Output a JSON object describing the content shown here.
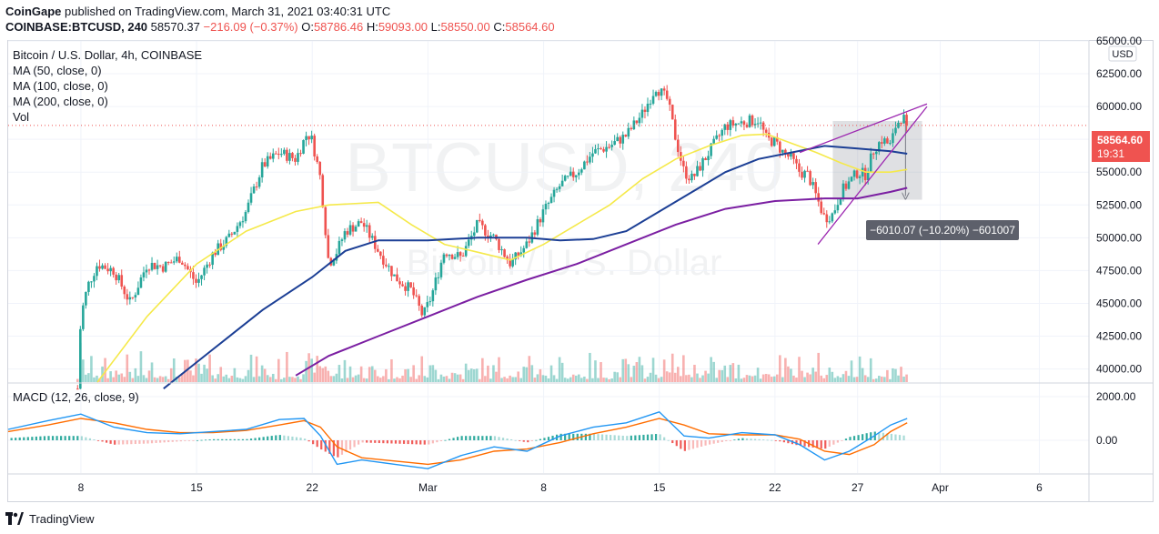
{
  "header": {
    "publisher": "CoinGape",
    "published_text": "published on TradingView.com, March 31, 2021 03:40:31 UTC",
    "symbol": "COINBASE:BTCUSD, 240",
    "last": "58570.37",
    "change": "−216.09 (−0.37%)",
    "o_label": "O:",
    "o": "58786.46",
    "h_label": "H:",
    "h": "59093.00",
    "l_label": "L:",
    "l": "58550.00",
    "c_label": "C:",
    "c": "58564.60"
  },
  "legend": {
    "title": "Bitcoin / U.S. Dollar, 4h, COINBASE",
    "ma50": "MA (50, close, 0)",
    "ma100": "MA (100, close, 0)",
    "ma200": "MA (200, close, 0)",
    "vol": "Vol"
  },
  "macd_label": "MACD (12, 26, close, 9)",
  "watermark": {
    "symbol": "BTCUSD, 240",
    "name": "Bitcoin / U.S. Dollar"
  },
  "currency_button": "USD",
  "price_badge": {
    "price": "58564.60",
    "countdown": "19:31"
  },
  "measure_label": "−6010.07 (−10.20%) −601007",
  "footer": {
    "brand": "TradingView"
  },
  "colors": {
    "up": "#26a69a",
    "down": "#ef5350",
    "ma50": "#f5e94a",
    "ma100": "#1c3f95",
    "ma200": "#7b1fa2",
    "macd": "#2196f3",
    "signal": "#ff6d00",
    "wedge": "#9c27b0",
    "badge": "#ef5350"
  },
  "chart_data": [
    {
      "type": "candlestick",
      "title": "Bitcoin / U.S. Dollar, 4h, COINBASE",
      "ylim": [
        39000,
        65000
      ],
      "y_ticks": [
        "65000.00",
        "62500.00",
        "60000.00",
        "57500.00",
        "55000.00",
        "52500.00",
        "50000.00",
        "47500.00",
        "45000.00",
        "42500.00",
        "40000.00"
      ],
      "x_ticks": [
        "8",
        "15",
        "22",
        "Mar",
        "8",
        "15",
        "22",
        "27",
        "Apr",
        "6"
      ],
      "x_tick_days": [
        8,
        15,
        22,
        29,
        36,
        43,
        50,
        55,
        60,
        66
      ],
      "x_range_days": [
        3.6,
        69
      ],
      "close_path": [
        [
          7.8,
          38500
        ],
        [
          8.0,
          44000
        ],
        [
          8.4,
          46300
        ],
        [
          9.0,
          48000
        ],
        [
          10.0,
          47500
        ],
        [
          11.0,
          45000
        ],
        [
          12.0,
          48000
        ],
        [
          13.0,
          47800
        ],
        [
          14.0,
          48500
        ],
        [
          15.0,
          46500
        ],
        [
          16.0,
          48800
        ],
        [
          17.0,
          50000
        ],
        [
          18.0,
          52000
        ],
        [
          19.0,
          55500
        ],
        [
          20.0,
          56500
        ],
        [
          21.0,
          56000
        ],
        [
          21.7,
          58000
        ],
        [
          22.0,
          57400
        ],
        [
          22.5,
          54500
        ],
        [
          23.0,
          48000
        ],
        [
          23.5,
          49000
        ],
        [
          24.0,
          50500
        ],
        [
          25.0,
          51200
        ],
        [
          26.0,
          49000
        ],
        [
          27.0,
          47000
        ],
        [
          28.0,
          46000
        ],
        [
          28.7,
          44000
        ],
        [
          29.2,
          45500
        ],
        [
          30.0,
          49000
        ],
        [
          31.0,
          48500
        ],
        [
          32.0,
          51000
        ],
        [
          33.0,
          50000
        ],
        [
          34.0,
          48000
        ],
        [
          35.0,
          49500
        ],
        [
          36.0,
          52000
        ],
        [
          37.0,
          54000
        ],
        [
          38.0,
          55000
        ],
        [
          39.0,
          56500
        ],
        [
          40.0,
          57000
        ],
        [
          41.0,
          57800
        ],
        [
          42.0,
          59500
        ],
        [
          42.8,
          61500
        ],
        [
          43.5,
          60500
        ],
        [
          44.0,
          57500
        ],
        [
          44.5,
          55000
        ],
        [
          45.0,
          54500
        ],
        [
          46.0,
          56500
        ],
        [
          47.0,
          58500
        ],
        [
          48.0,
          58800
        ],
        [
          49.0,
          59000
        ],
        [
          49.5,
          57500
        ],
        [
          50.0,
          57300
        ],
        [
          50.5,
          56500
        ],
        [
          51.0,
          56000
        ],
        [
          51.5,
          55000
        ],
        [
          52.0,
          54800
        ],
        [
          53.0,
          51500
        ],
        [
          53.5,
          51800
        ],
        [
          54.0,
          53500
        ],
        [
          55.0,
          55000
        ],
        [
          55.5,
          54800
        ],
        [
          56.0,
          56800
        ],
        [
          56.5,
          57500
        ],
        [
          57.0,
          57000
        ],
        [
          57.3,
          58500
        ],
        [
          57.7,
          59300
        ],
        [
          58.0,
          58560
        ]
      ],
      "series": [
        {
          "name": "MA (50, close, 0)",
          "points": [
            [
              9,
              39000
            ],
            [
              12,
              44000
            ],
            [
              15,
              48000
            ],
            [
              18,
              50500
            ],
            [
              21,
              52000
            ],
            [
              23,
              52500
            ],
            [
              26,
              52700
            ],
            [
              28,
              51000
            ],
            [
              30,
              49500
            ],
            [
              32,
              48900
            ],
            [
              34,
              48300
            ],
            [
              36,
              49500
            ],
            [
              38,
              51000
            ],
            [
              40,
              52500
            ],
            [
              42,
              54500
            ],
            [
              44,
              56000
            ],
            [
              46,
              57000
            ],
            [
              48,
              57800
            ],
            [
              49.5,
              57900
            ],
            [
              51,
              57200
            ],
            [
              52.5,
              56500
            ],
            [
              54,
              55700
            ],
            [
              55.5,
              55000
            ],
            [
              57,
              55000
            ],
            [
              58,
              55200
            ]
          ]
        },
        {
          "name": "MA (100, close, 0)",
          "points": [
            [
              13,
              38500
            ],
            [
              16,
              41500
            ],
            [
              19,
              44500
            ],
            [
              22,
              47000
            ],
            [
              24,
              49000
            ],
            [
              26,
              49800
            ],
            [
              29,
              49800
            ],
            [
              32,
              50000
            ],
            [
              35,
              50000
            ],
            [
              37,
              49800
            ],
            [
              39,
              49900
            ],
            [
              41,
              50500
            ],
            [
              43,
              52000
            ],
            [
              45,
              53500
            ],
            [
              47,
              55000
            ],
            [
              49,
              56000
            ],
            [
              51,
              56500
            ],
            [
              53,
              57000
            ],
            [
              55,
              56800
            ],
            [
              57,
              56600
            ],
            [
              58,
              56400
            ]
          ]
        },
        {
          "name": "MA (200, close, 0)",
          "points": [
            [
              21,
              39500
            ],
            [
              23,
              41000
            ],
            [
              26,
              42500
            ],
            [
              29,
              44000
            ],
            [
              32,
              45500
            ],
            [
              35,
              46800
            ],
            [
              38,
              48000
            ],
            [
              41,
              49500
            ],
            [
              44,
              51000
            ],
            [
              47,
              52200
            ],
            [
              50,
              52800
            ],
            [
              53,
              53000
            ],
            [
              55,
              53000
            ],
            [
              57,
              53500
            ],
            [
              58,
              53800
            ]
          ]
        }
      ]
    },
    {
      "type": "line",
      "title": "MACD (12, 26, close, 9)",
      "ylim": [
        -1500,
        2500
      ],
      "y_ticks": [
        "2000.00",
        "0.00"
      ],
      "series": [
        {
          "name": "MACD",
          "points": [
            [
              3.6,
              500
            ],
            [
              6,
              900
            ],
            [
              8,
              1200
            ],
            [
              10,
              600
            ],
            [
              12,
              350
            ],
            [
              14,
              300
            ],
            [
              16,
              400
            ],
            [
              18,
              500
            ],
            [
              20,
              950
            ],
            [
              21.5,
              1000
            ],
            [
              22.5,
              200
            ],
            [
              23.5,
              -1100
            ],
            [
              25,
              -900
            ],
            [
              27,
              -1100
            ],
            [
              29,
              -1300
            ],
            [
              31,
              -700
            ],
            [
              33,
              -300
            ],
            [
              35,
              -500
            ],
            [
              37,
              200
            ],
            [
              39,
              600
            ],
            [
              41,
              800
            ],
            [
              43,
              1300
            ],
            [
              44.5,
              200
            ],
            [
              46,
              100
            ],
            [
              48,
              350
            ],
            [
              50,
              250
            ],
            [
              51.5,
              -200
            ],
            [
              53,
              -900
            ],
            [
              54.5,
              -500
            ],
            [
              56,
              200
            ],
            [
              57,
              700
            ],
            [
              58,
              1000
            ]
          ]
        },
        {
          "name": "Signal",
          "points": [
            [
              3.6,
              400
            ],
            [
              6,
              700
            ],
            [
              8,
              1000
            ],
            [
              10,
              800
            ],
            [
              12,
              500
            ],
            [
              14,
              350
            ],
            [
              16,
              350
            ],
            [
              18,
              450
            ],
            [
              20,
              700
            ],
            [
              21.5,
              900
            ],
            [
              22.5,
              600
            ],
            [
              23.5,
              -300
            ],
            [
              25,
              -800
            ],
            [
              27,
              -950
            ],
            [
              29,
              -1100
            ],
            [
              31,
              -900
            ],
            [
              33,
              -500
            ],
            [
              35,
              -400
            ],
            [
              37,
              -100
            ],
            [
              39,
              300
            ],
            [
              41,
              600
            ],
            [
              43,
              1000
            ],
            [
              44.5,
              700
            ],
            [
              46,
              300
            ],
            [
              48,
              250
            ],
            [
              50,
              250
            ],
            [
              51.5,
              50
            ],
            [
              53,
              -500
            ],
            [
              54.5,
              -650
            ],
            [
              56,
              -200
            ],
            [
              57,
              400
            ],
            [
              58,
              800
            ]
          ]
        }
      ]
    }
  ]
}
